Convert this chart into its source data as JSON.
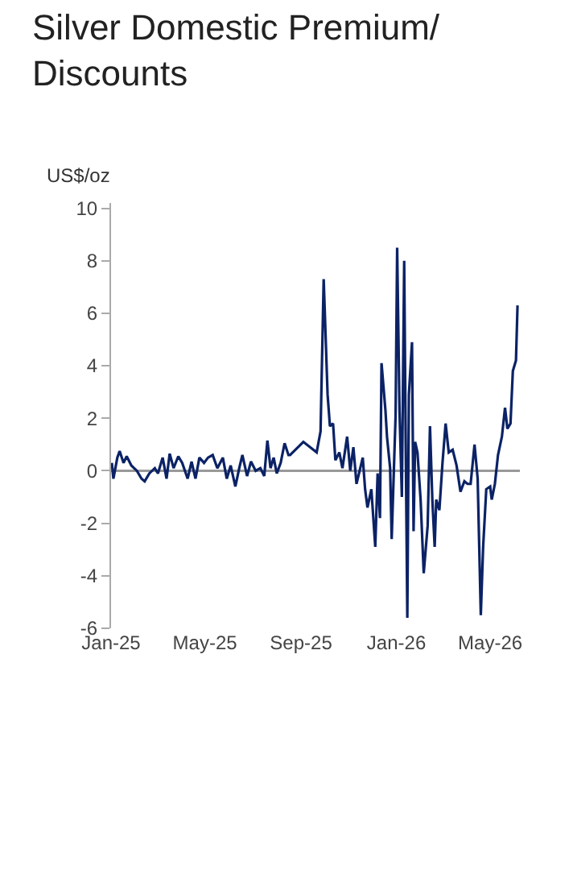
{
  "chart_data": {
    "type": "line",
    "title": "Silver Domestic Premium/\nDiscounts",
    "ylabel": "US$/oz",
    "x": [
      "2025-01-02",
      "2025-01-04",
      "2025-01-09",
      "2025-01-12",
      "2025-01-17",
      "2025-01-21",
      "2025-01-27",
      "2025-02-03",
      "2025-02-09",
      "2025-02-13",
      "2025-02-19",
      "2025-02-26",
      "2025-03-02",
      "2025-03-08",
      "2025-03-13",
      "2025-03-17",
      "2025-03-22",
      "2025-03-28",
      "2025-04-02",
      "2025-04-09",
      "2025-04-14",
      "2025-04-19",
      "2025-04-24",
      "2025-04-30",
      "2025-05-05",
      "2025-05-11",
      "2025-05-17",
      "2025-05-24",
      "2025-05-29",
      "2025-06-03",
      "2025-06-09",
      "2025-06-14",
      "2025-06-18",
      "2025-06-24",
      "2025-06-29",
      "2025-07-05",
      "2025-07-11",
      "2025-07-16",
      "2025-07-20",
      "2025-07-24",
      "2025-07-28",
      "2025-08-01",
      "2025-08-06",
      "2025-08-11",
      "2025-08-16",
      "2025-08-18",
      "2025-09-04",
      "2025-09-21",
      "2025-09-26",
      "2025-09-30",
      "2025-10-05",
      "2025-10-08",
      "2025-10-12",
      "2025-10-15",
      "2025-10-20",
      "2025-10-24",
      "2025-10-30",
      "2025-11-03",
      "2025-11-07",
      "2025-11-11",
      "2025-11-15",
      "2025-11-19",
      "2025-11-22",
      "2025-11-25",
      "2025-11-30",
      "2025-12-05",
      "2025-12-08",
      "2025-12-11",
      "2025-12-13",
      "2025-12-18",
      "2025-12-20",
      "2025-12-24",
      "2025-12-26",
      "2025-12-31",
      "2026-01-02",
      "2026-01-05",
      "2026-01-08",
      "2026-01-11",
      "2026-01-13",
      "2026-01-15",
      "2026-01-17",
      "2026-01-21",
      "2026-01-23",
      "2026-01-25",
      "2026-01-28",
      "2026-02-01",
      "2026-02-05",
      "2026-02-10",
      "2026-02-13",
      "2026-02-16",
      "2026-02-19",
      "2026-02-21",
      "2026-02-25",
      "2026-03-01",
      "2026-03-05",
      "2026-03-09",
      "2026-03-14",
      "2026-03-19",
      "2026-03-24",
      "2026-03-29",
      "2026-04-02",
      "2026-04-06",
      "2026-04-11",
      "2026-04-15",
      "2026-04-19",
      "2026-04-22",
      "2026-04-26",
      "2026-05-01",
      "2026-05-03",
      "2026-05-07",
      "2026-05-11",
      "2026-05-16",
      "2026-05-20",
      "2026-05-23",
      "2026-05-27",
      "2026-05-30",
      "2026-06-03",
      "2026-06-05"
    ],
    "series": [
      {
        "color": "#0b2265",
        "values": [
          0.3,
          -0.3,
          0.5,
          0.75,
          0.3,
          0.55,
          0.2,
          0,
          -0.3,
          -0.4,
          -0.1,
          0.1,
          -0.1,
          0.5,
          -0.3,
          0.65,
          0.1,
          0.55,
          0.3,
          -0.3,
          0.35,
          -0.3,
          0.5,
          0.3,
          0.5,
          0.6,
          0.1,
          0.5,
          -0.3,
          0.2,
          -0.6,
          0.1,
          0.6,
          -0.2,
          0.35,
          0,
          0.1,
          -0.2,
          1.15,
          0.1,
          0.5,
          -0.1,
          0.3,
          1.05,
          0.6,
          0.6,
          1.1,
          0.7,
          1.5,
          7.3,
          2.9,
          1.7,
          1.8,
          0.4,
          0.7,
          0.1,
          1.3,
          0,
          0.9,
          -0.5,
          0,
          0.5,
          -0.7,
          -1.4,
          -0.7,
          -2.9,
          -0.1,
          -1.8,
          4.1,
          2.3,
          1.3,
          0.1,
          -2.6,
          2.1,
          8.5,
          2.3,
          -1.0,
          8.0,
          0.9,
          -5.6,
          2.9,
          4.9,
          -2.3,
          1.1,
          0.7,
          -1.1,
          -3.9,
          -2.1,
          1.7,
          -1.1,
          -2.9,
          -1.1,
          -1.5,
          0.3,
          1.8,
          0.7,
          0.8,
          0.2,
          -0.8,
          -0.4,
          -0.5,
          -0.5,
          1.0,
          -0.3,
          -5.5,
          -2.9,
          -0.7,
          -0.6,
          -1.1,
          -0.5,
          0.6,
          1.3,
          2.4,
          1.6,
          1.8,
          3.8,
          4.2,
          6.3
        ]
      }
    ],
    "xlim": [
      "2025-01-01",
      "2026-06-08"
    ],
    "xticks": [
      {
        "value": "2025-01-01",
        "label": "Jan-25"
      },
      {
        "value": "2025-05-01",
        "label": "May-25"
      },
      {
        "value": "2025-09-01",
        "label": "Sep-25"
      },
      {
        "value": "2026-01-01",
        "label": "Jan-26"
      },
      {
        "value": "2026-05-01",
        "label": "May-26"
      }
    ],
    "ylim": [
      -6,
      10.2
    ],
    "yticks": [
      -6,
      -4,
      -2,
      0,
      2,
      4,
      6,
      8,
      10
    ],
    "ref_lines": [
      {
        "axis": "y",
        "value": 0,
        "color": "#999999"
      }
    ],
    "grid": false
  }
}
